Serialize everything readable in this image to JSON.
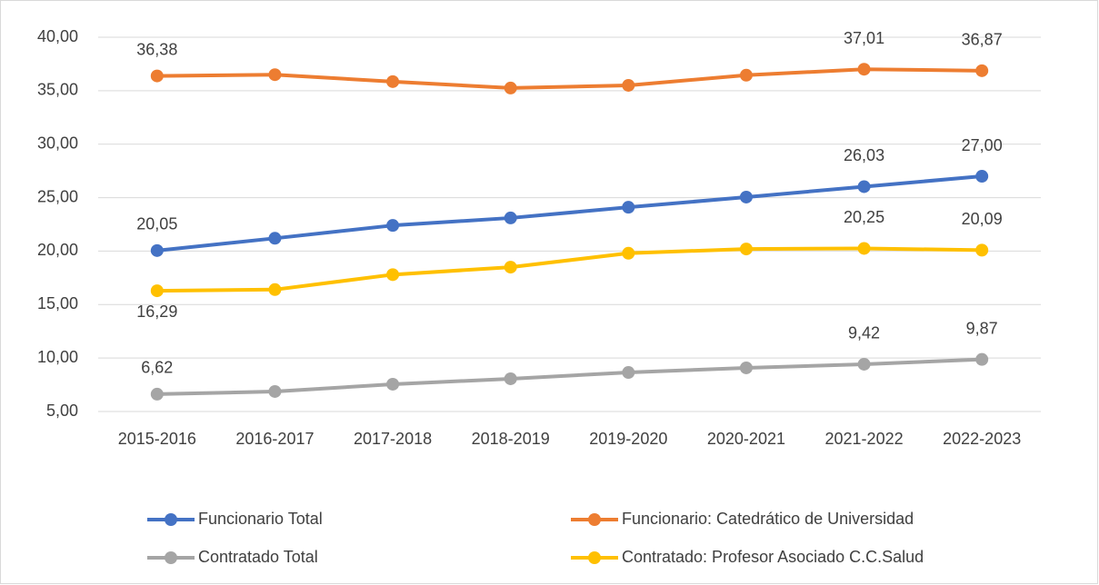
{
  "chart_data": {
    "type": "line",
    "categories": [
      "2015-2016",
      "2016-2017",
      "2017-2018",
      "2018-2019",
      "2019-2020",
      "2020-2021",
      "2021-2022",
      "2022-2023"
    ],
    "series": [
      {
        "name": "Funcionario Total",
        "color": "#4472c4",
        "values": [
          20.05,
          21.2,
          22.4,
          23.1,
          24.1,
          25.05,
          26.03,
          27.0
        ],
        "value_labels": [
          "20,05",
          null,
          null,
          null,
          null,
          null,
          "26,03",
          "27,00"
        ]
      },
      {
        "name": "Funcionario: Catedrático de Universidad",
        "color": "#ed7d31",
        "values": [
          36.38,
          36.5,
          35.85,
          35.25,
          35.5,
          36.45,
          37.01,
          36.87
        ],
        "value_labels": [
          "36,38",
          null,
          null,
          null,
          null,
          null,
          "37,01",
          "36,87"
        ]
      },
      {
        "name": "Contratado Total",
        "color": "#a5a5a5",
        "values": [
          6.62,
          6.87,
          7.55,
          8.06,
          8.65,
          9.08,
          9.42,
          9.87
        ],
        "value_labels": [
          "6,62",
          null,
          null,
          null,
          null,
          null,
          "9,42",
          "9,87"
        ]
      },
      {
        "name": "Contratado: Profesor Asociado C.C.Salud",
        "color": "#ffc000",
        "values": [
          16.29,
          16.4,
          17.8,
          18.5,
          19.8,
          20.2,
          20.25,
          20.09
        ],
        "value_labels": [
          "16,29",
          null,
          null,
          null,
          null,
          null,
          "20,25",
          "20,09"
        ]
      }
    ],
    "ylim": [
      5,
      40
    ],
    "yticks": [
      {
        "value": 5,
        "label": "5,00"
      },
      {
        "value": 10,
        "label": "10,00"
      },
      {
        "value": 15,
        "label": "15,00"
      },
      {
        "value": 20,
        "label": "20,00"
      },
      {
        "value": 25,
        "label": "25,00"
      },
      {
        "value": 30,
        "label": "30,00"
      },
      {
        "value": 35,
        "label": "35,00"
      },
      {
        "value": 40,
        "label": "40,00"
      }
    ],
    "grid": true,
    "legend": "bottom"
  }
}
